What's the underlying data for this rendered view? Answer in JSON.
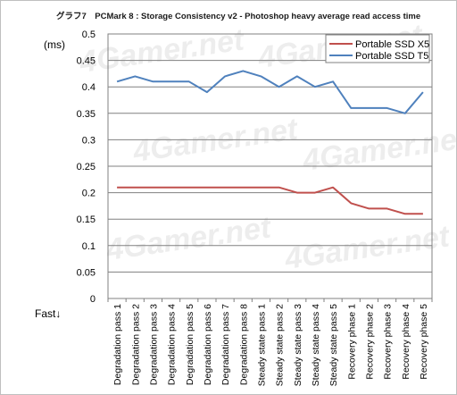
{
  "chart_data": {
    "type": "line",
    "title": "グラフ7　PCMark 8 : Storage Consistency v2 - Photoshop heavy average read access time",
    "ylabel": "(ms)",
    "xlabel": "",
    "fast_label": "Fast↓",
    "watermark": "4Gamer.net",
    "ylim": [
      0,
      0.5
    ],
    "ytick_step": 0.05,
    "yticks": [
      "0",
      "0.05",
      "0.1",
      "0.15",
      "0.2",
      "0.25",
      "0.3",
      "0.35",
      "0.4",
      "0.45",
      "0.5"
    ],
    "grid": true,
    "legend_position": "top-right",
    "categories": [
      "Degradation pass 1",
      "Degradation pass 2",
      "Degradation pass 3",
      "Degradation pass 4",
      "Degradation pass 5",
      "Degradation pass 6",
      "Degradation pass 7",
      "Degradation pass 8",
      "Steady state pass 1",
      "Steady state pass 2",
      "Steady state pass 3",
      "Steady state pass 4",
      "Steady state pass 5",
      "Recovery phase 1",
      "Recovery phase 2",
      "Recovery phase 3",
      "Recovery phase 4",
      "Recovery phase 5"
    ],
    "series": [
      {
        "name": "Portable SSD X5",
        "color": "#c0504d",
        "values": [
          0.21,
          0.21,
          0.21,
          0.21,
          0.21,
          0.21,
          0.21,
          0.21,
          0.21,
          0.21,
          0.2,
          0.2,
          0.21,
          0.18,
          0.17,
          0.17,
          0.16,
          0.16
        ]
      },
      {
        "name": "Portable SSD T5",
        "color": "#4f81bd",
        "values": [
          0.41,
          0.42,
          0.41,
          0.41,
          0.41,
          0.39,
          0.42,
          0.43,
          0.42,
          0.4,
          0.42,
          0.4,
          0.41,
          0.36,
          0.36,
          0.36,
          0.35,
          0.39
        ]
      }
    ]
  }
}
